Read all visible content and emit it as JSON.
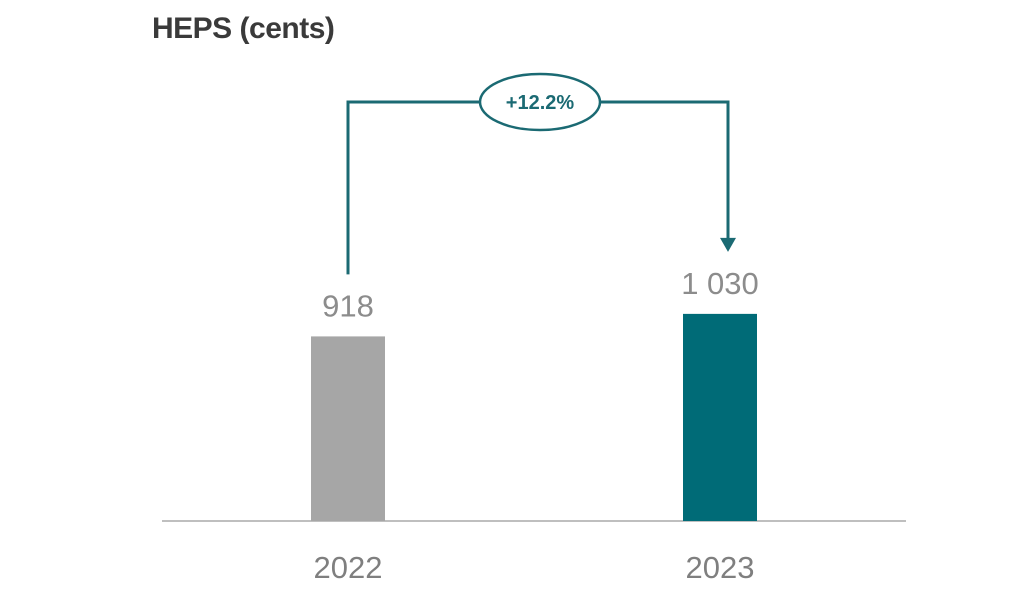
{
  "chart_data": {
    "type": "bar",
    "title": "HEPS (cents)",
    "categories": [
      "2022",
      "2023"
    ],
    "values": [
      918,
      1030
    ],
    "value_labels": [
      "918",
      "1 030"
    ],
    "bar_colors": [
      "#a6a6a6",
      "#006b77"
    ],
    "ylim": [
      0,
      1400
    ],
    "xlabel": "",
    "ylabel": "",
    "grid": false,
    "annotation": {
      "text": "+12.2%",
      "from": "2022",
      "to": "2023",
      "color": "#1b6a73"
    }
  }
}
